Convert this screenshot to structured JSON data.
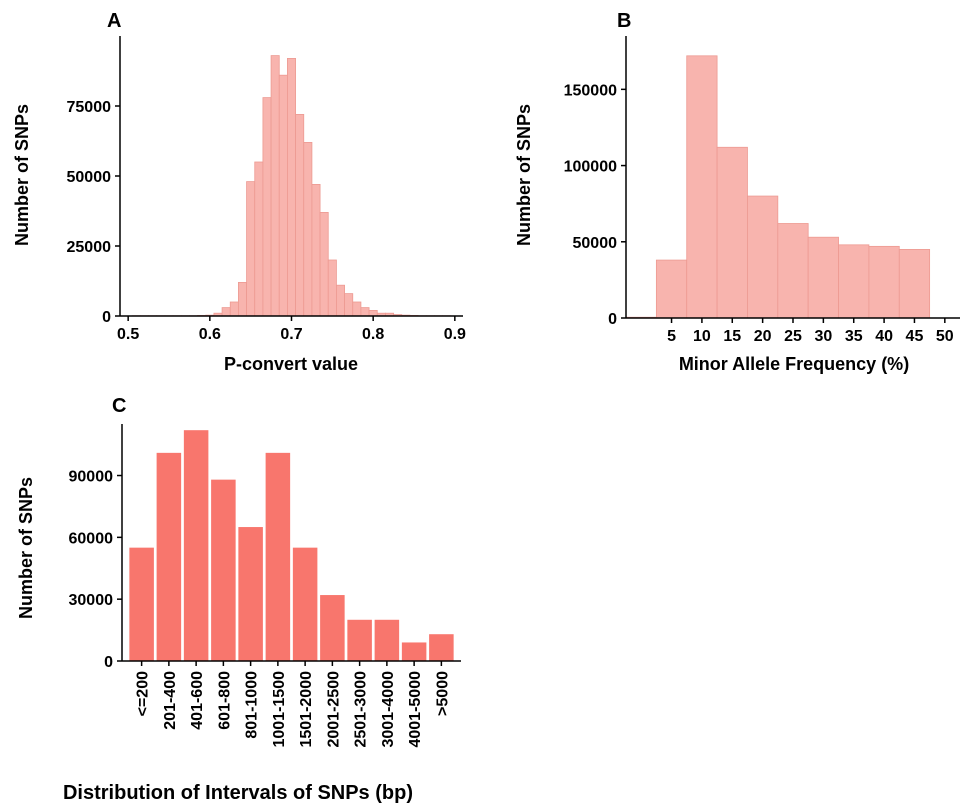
{
  "chart_data": [
    {
      "panel": "A",
      "type": "bar",
      "xlabel": "P-convert value",
      "ylabel": "Number of SNPs",
      "xlim": [
        0.49,
        0.91
      ],
      "ylim": [
        0,
        100000
      ],
      "xticks": [
        0.5,
        0.6,
        0.7,
        0.8,
        0.9
      ],
      "xtick_labels": [
        "0.5",
        "0.6",
        "0.7",
        "0.8",
        "0.9"
      ],
      "yticks": [
        0,
        25000,
        50000,
        75000
      ],
      "ytick_labels": [
        "0",
        "25000",
        "50000",
        "75000"
      ],
      "bin_width": 0.01,
      "bin_centers": [
        0.51,
        0.52,
        0.53,
        0.54,
        0.55,
        0.56,
        0.57,
        0.58,
        0.59,
        0.6,
        0.61,
        0.62,
        0.63,
        0.64,
        0.65,
        0.66,
        0.67,
        0.68,
        0.69,
        0.7,
        0.71,
        0.72,
        0.73,
        0.74,
        0.75,
        0.76,
        0.77,
        0.78,
        0.79,
        0.8,
        0.81,
        0.82,
        0.83,
        0.84,
        0.85,
        0.86,
        0.87,
        0.88,
        0.89
      ],
      "values": [
        100,
        100,
        100,
        100,
        100,
        100,
        100,
        100,
        200,
        300,
        1000,
        3000,
        5000,
        12000,
        48000,
        55000,
        78000,
        93000,
        86000,
        92000,
        72000,
        62000,
        47000,
        37000,
        20000,
        11000,
        8000,
        5000,
        3000,
        2000,
        1000,
        1000,
        500,
        300,
        200,
        100,
        100,
        100,
        100
      ],
      "grid": false,
      "colors": {
        "fill": "#f8b4ae",
        "edge": "#ed9a92"
      }
    },
    {
      "panel": "B",
      "type": "bar",
      "xlabel": "Minor Allele Frequency (%)",
      "ylabel": "Number of SNPs",
      "xlim": [
        -2.5,
        52.5
      ],
      "ylim": [
        0,
        185000
      ],
      "xticks": [
        5,
        10,
        15,
        20,
        25,
        30,
        35,
        40,
        45,
        50
      ],
      "xtick_labels": [
        "5",
        "10",
        "15",
        "20",
        "25",
        "30",
        "35",
        "40",
        "45",
        "50"
      ],
      "yticks": [
        0,
        50000,
        100000,
        150000
      ],
      "ytick_labels": [
        "0",
        "50000",
        "100000",
        "150000"
      ],
      "bin_width": 5,
      "bin_centers": [
        0,
        5,
        10,
        15,
        20,
        25,
        30,
        35,
        40,
        45,
        50
      ],
      "values": [
        500,
        38000,
        172000,
        112000,
        80000,
        62000,
        53000,
        48000,
        47000,
        45000,
        0
      ],
      "grid": false,
      "colors": {
        "fill": "#f8b4ae",
        "edge": "#ed9a92"
      }
    },
    {
      "panel": "C",
      "type": "bar",
      "xlabel": "Distribution of Intervals of SNPs (bp)",
      "ylabel": "Number of SNPs",
      "categories": [
        "<=200",
        "201-400",
        "401-600",
        "601-800",
        "801-1000",
        "1001-1500",
        "1501-2000",
        "2001-2500",
        "2501-3000",
        "3001-4000",
        "4001-5000",
        ">5000"
      ],
      "values": [
        55000,
        101000,
        112000,
        88000,
        65000,
        101000,
        55000,
        32000,
        20000,
        20000,
        9000,
        13000
      ],
      "ylim": [
        0,
        115000
      ],
      "yticks": [
        0,
        30000,
        60000,
        90000
      ],
      "ytick_labels": [
        "0",
        "30000",
        "60000",
        "90000"
      ],
      "grid": false,
      "colors": {
        "fill": "#f8766d"
      }
    }
  ]
}
